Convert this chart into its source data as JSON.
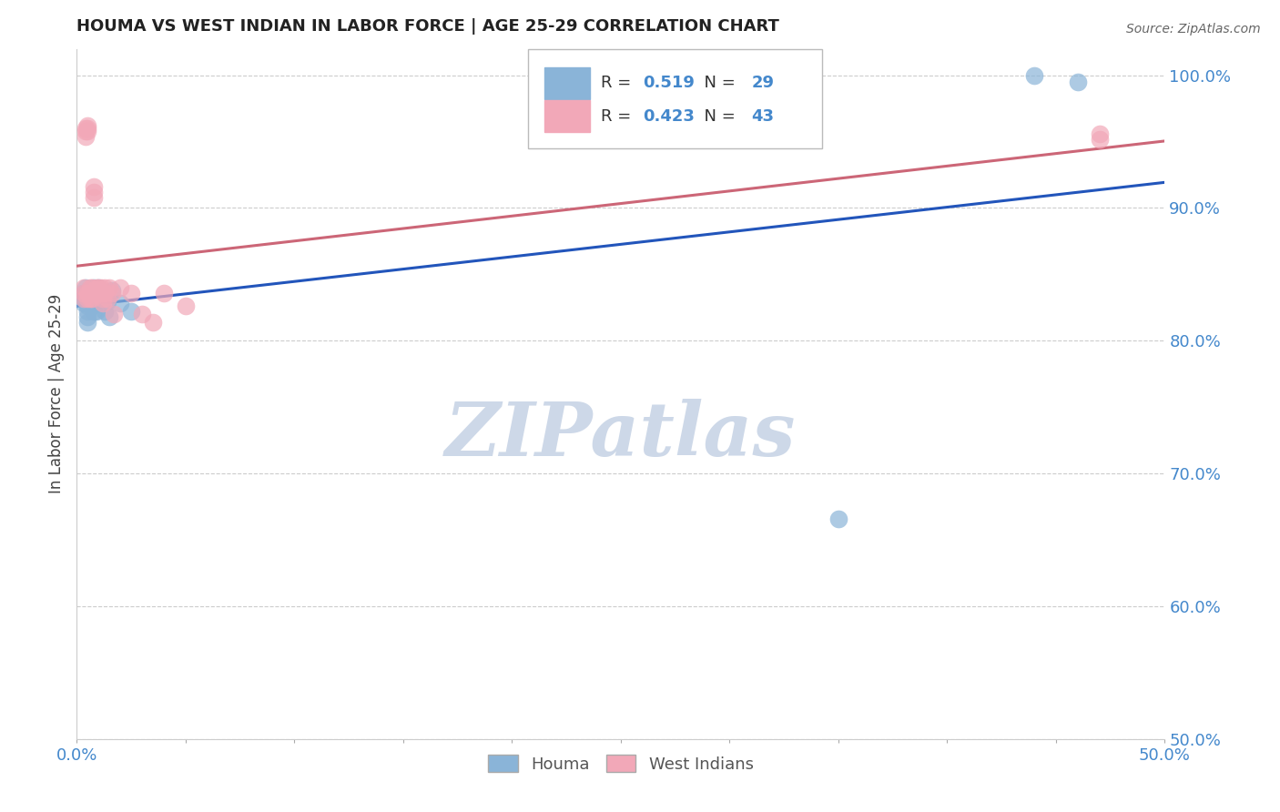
{
  "title": "HOUMA VS WEST INDIAN IN LABOR FORCE | AGE 25-29 CORRELATION CHART",
  "source": "Source: ZipAtlas.com",
  "ylabel": "In Labor Force | Age 25-29",
  "legend_label1": "Houma",
  "legend_label2": "West Indians",
  "R1": 0.519,
  "N1": 29,
  "R2": 0.423,
  "N2": 43,
  "xlim": [
    0.0,
    0.5
  ],
  "ylim": [
    0.5,
    1.02
  ],
  "xticks": [
    0.0,
    0.05,
    0.1,
    0.15,
    0.2,
    0.25,
    0.3,
    0.35,
    0.4,
    0.45,
    0.5
  ],
  "xtick_labels_show": [
    "0.0%",
    "",
    "",
    "",
    "",
    "",
    "",
    "",
    "",
    "",
    "50.0%"
  ],
  "yticks": [
    0.5,
    0.6,
    0.7,
    0.8,
    0.9,
    1.0
  ],
  "ytick_labels": [
    "50.0%",
    "60.0%",
    "70.0%",
    "80.0%",
    "90.0%",
    "100.0%"
  ],
  "color_blue": "#8ab4d8",
  "color_pink": "#f2a8b8",
  "line_blue": "#2255bb",
  "line_pink": "#cc6677",
  "color_axis_labels": "#4488cc",
  "houma_x": [
    0.003,
    0.003,
    0.003,
    0.004,
    0.004,
    0.005,
    0.005,
    0.005,
    0.005,
    0.006,
    0.006,
    0.007,
    0.007,
    0.008,
    0.008,
    0.009,
    0.009,
    0.01,
    0.011,
    0.012,
    0.013,
    0.014,
    0.015,
    0.016,
    0.02,
    0.025,
    0.35,
    0.44,
    0.46
  ],
  "houma_y": [
    0.836,
    0.832,
    0.828,
    0.84,
    0.834,
    0.826,
    0.822,
    0.818,
    0.814,
    0.838,
    0.833,
    0.83,
    0.826,
    0.84,
    0.822,
    0.836,
    0.822,
    0.84,
    0.838,
    0.836,
    0.822,
    0.83,
    0.818,
    0.838,
    0.828,
    0.822,
    0.666,
    1.0,
    0.995
  ],
  "west_x": [
    0.003,
    0.003,
    0.003,
    0.004,
    0.004,
    0.004,
    0.005,
    0.005,
    0.005,
    0.005,
    0.005,
    0.006,
    0.006,
    0.006,
    0.007,
    0.007,
    0.007,
    0.008,
    0.008,
    0.008,
    0.009,
    0.009,
    0.009,
    0.01,
    0.01,
    0.011,
    0.011,
    0.012,
    0.012,
    0.013,
    0.013,
    0.014,
    0.015,
    0.016,
    0.017,
    0.02,
    0.025,
    0.03,
    0.035,
    0.04,
    0.05,
    0.47,
    0.47
  ],
  "west_y": [
    0.84,
    0.836,
    0.832,
    0.96,
    0.958,
    0.954,
    0.962,
    0.96,
    0.958,
    0.836,
    0.832,
    0.84,
    0.836,
    0.832,
    0.84,
    0.836,
    0.832,
    0.916,
    0.912,
    0.908,
    0.84,
    0.838,
    0.836,
    0.84,
    0.836,
    0.84,
    0.836,
    0.832,
    0.828,
    0.84,
    0.836,
    0.832,
    0.84,
    0.836,
    0.82,
    0.84,
    0.836,
    0.82,
    0.814,
    0.836,
    0.826,
    0.956,
    0.952
  ],
  "watermark_text": "ZIPatlas",
  "watermark_color": "#cdd8e8",
  "grid_color": "#cccccc"
}
